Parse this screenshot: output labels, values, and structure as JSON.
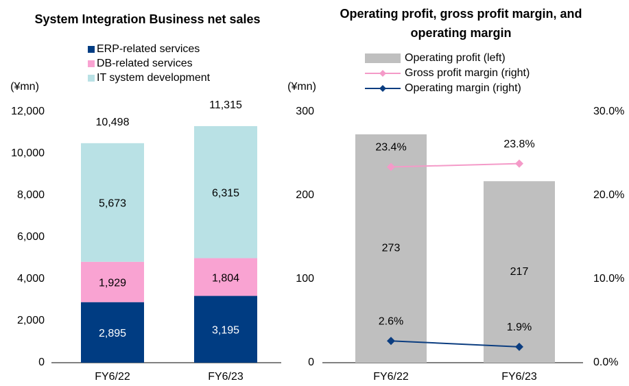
{
  "chart_data": [
    {
      "type": "stacked-bar",
      "title": "System Integration Business net sales",
      "y_label": "(¥mn)",
      "categories": [
        "FY6/22",
        "FY6/23"
      ],
      "series": [
        {
          "name": "ERP-related services",
          "color": "#003c82",
          "values": [
            2895,
            3195
          ],
          "value_labels": [
            "2,895",
            "3,195"
          ]
        },
        {
          "name": "DB-related services",
          "color": "#f9a3d2",
          "values": [
            1929,
            1804
          ],
          "value_labels": [
            "1,929",
            "1,804"
          ]
        },
        {
          "name": "IT system development",
          "color": "#b9e1e5",
          "values": [
            5673,
            6315
          ],
          "value_labels": [
            "5,673",
            "6,315"
          ]
        }
      ],
      "totals": [
        {
          "value": 10498,
          "label": "10,498"
        },
        {
          "value": 11315,
          "label": "11,315"
        }
      ],
      "ylim": [
        0,
        12000
      ],
      "yticks": [
        0,
        {
          "value": 2000,
          "label": "2,000"
        },
        {
          "value": 4000,
          "label": "4,000"
        },
        {
          "value": 6000,
          "label": "6,000"
        },
        {
          "value": 8000,
          "label": "8,000"
        },
        {
          "value": 10000,
          "label": "10,000"
        },
        {
          "value": 12000,
          "label": "12,000"
        }
      ],
      "grid": false
    },
    {
      "type": "combo",
      "title": "Operating profit, gross profit margin, and operating margin",
      "y_label": "(¥mn)",
      "categories": [
        "FY6/22",
        "FY6/23"
      ],
      "series": [
        {
          "name": "Operating profit (left)",
          "type": "bar",
          "color": "#bfbfbf",
          "values": [
            273,
            217
          ]
        },
        {
          "name": "Gross profit margin (right)",
          "type": "line",
          "axis": "y2",
          "color": "#f49ac8",
          "values": [
            23.4,
            23.8
          ],
          "value_labels": [
            "23.4%",
            "23.8%"
          ]
        },
        {
          "name": "Operating margin (right)",
          "type": "line",
          "axis": "y2",
          "color": "#0b3d80",
          "values": [
            2.6,
            1.9
          ],
          "value_labels": [
            "2.6%",
            "1.9%"
          ]
        }
      ],
      "ylim": [
        0,
        300
      ],
      "yticks": [
        0,
        100,
        200,
        300
      ],
      "y2lim": [
        0,
        30
      ],
      "y2ticks": [
        {
          "value": 0,
          "label": "0.0%"
        },
        {
          "value": 10,
          "label": "10.0%"
        },
        {
          "value": 20,
          "label": "20.0%"
        },
        {
          "value": 30,
          "label": "30.0%"
        }
      ],
      "grid": false
    }
  ]
}
